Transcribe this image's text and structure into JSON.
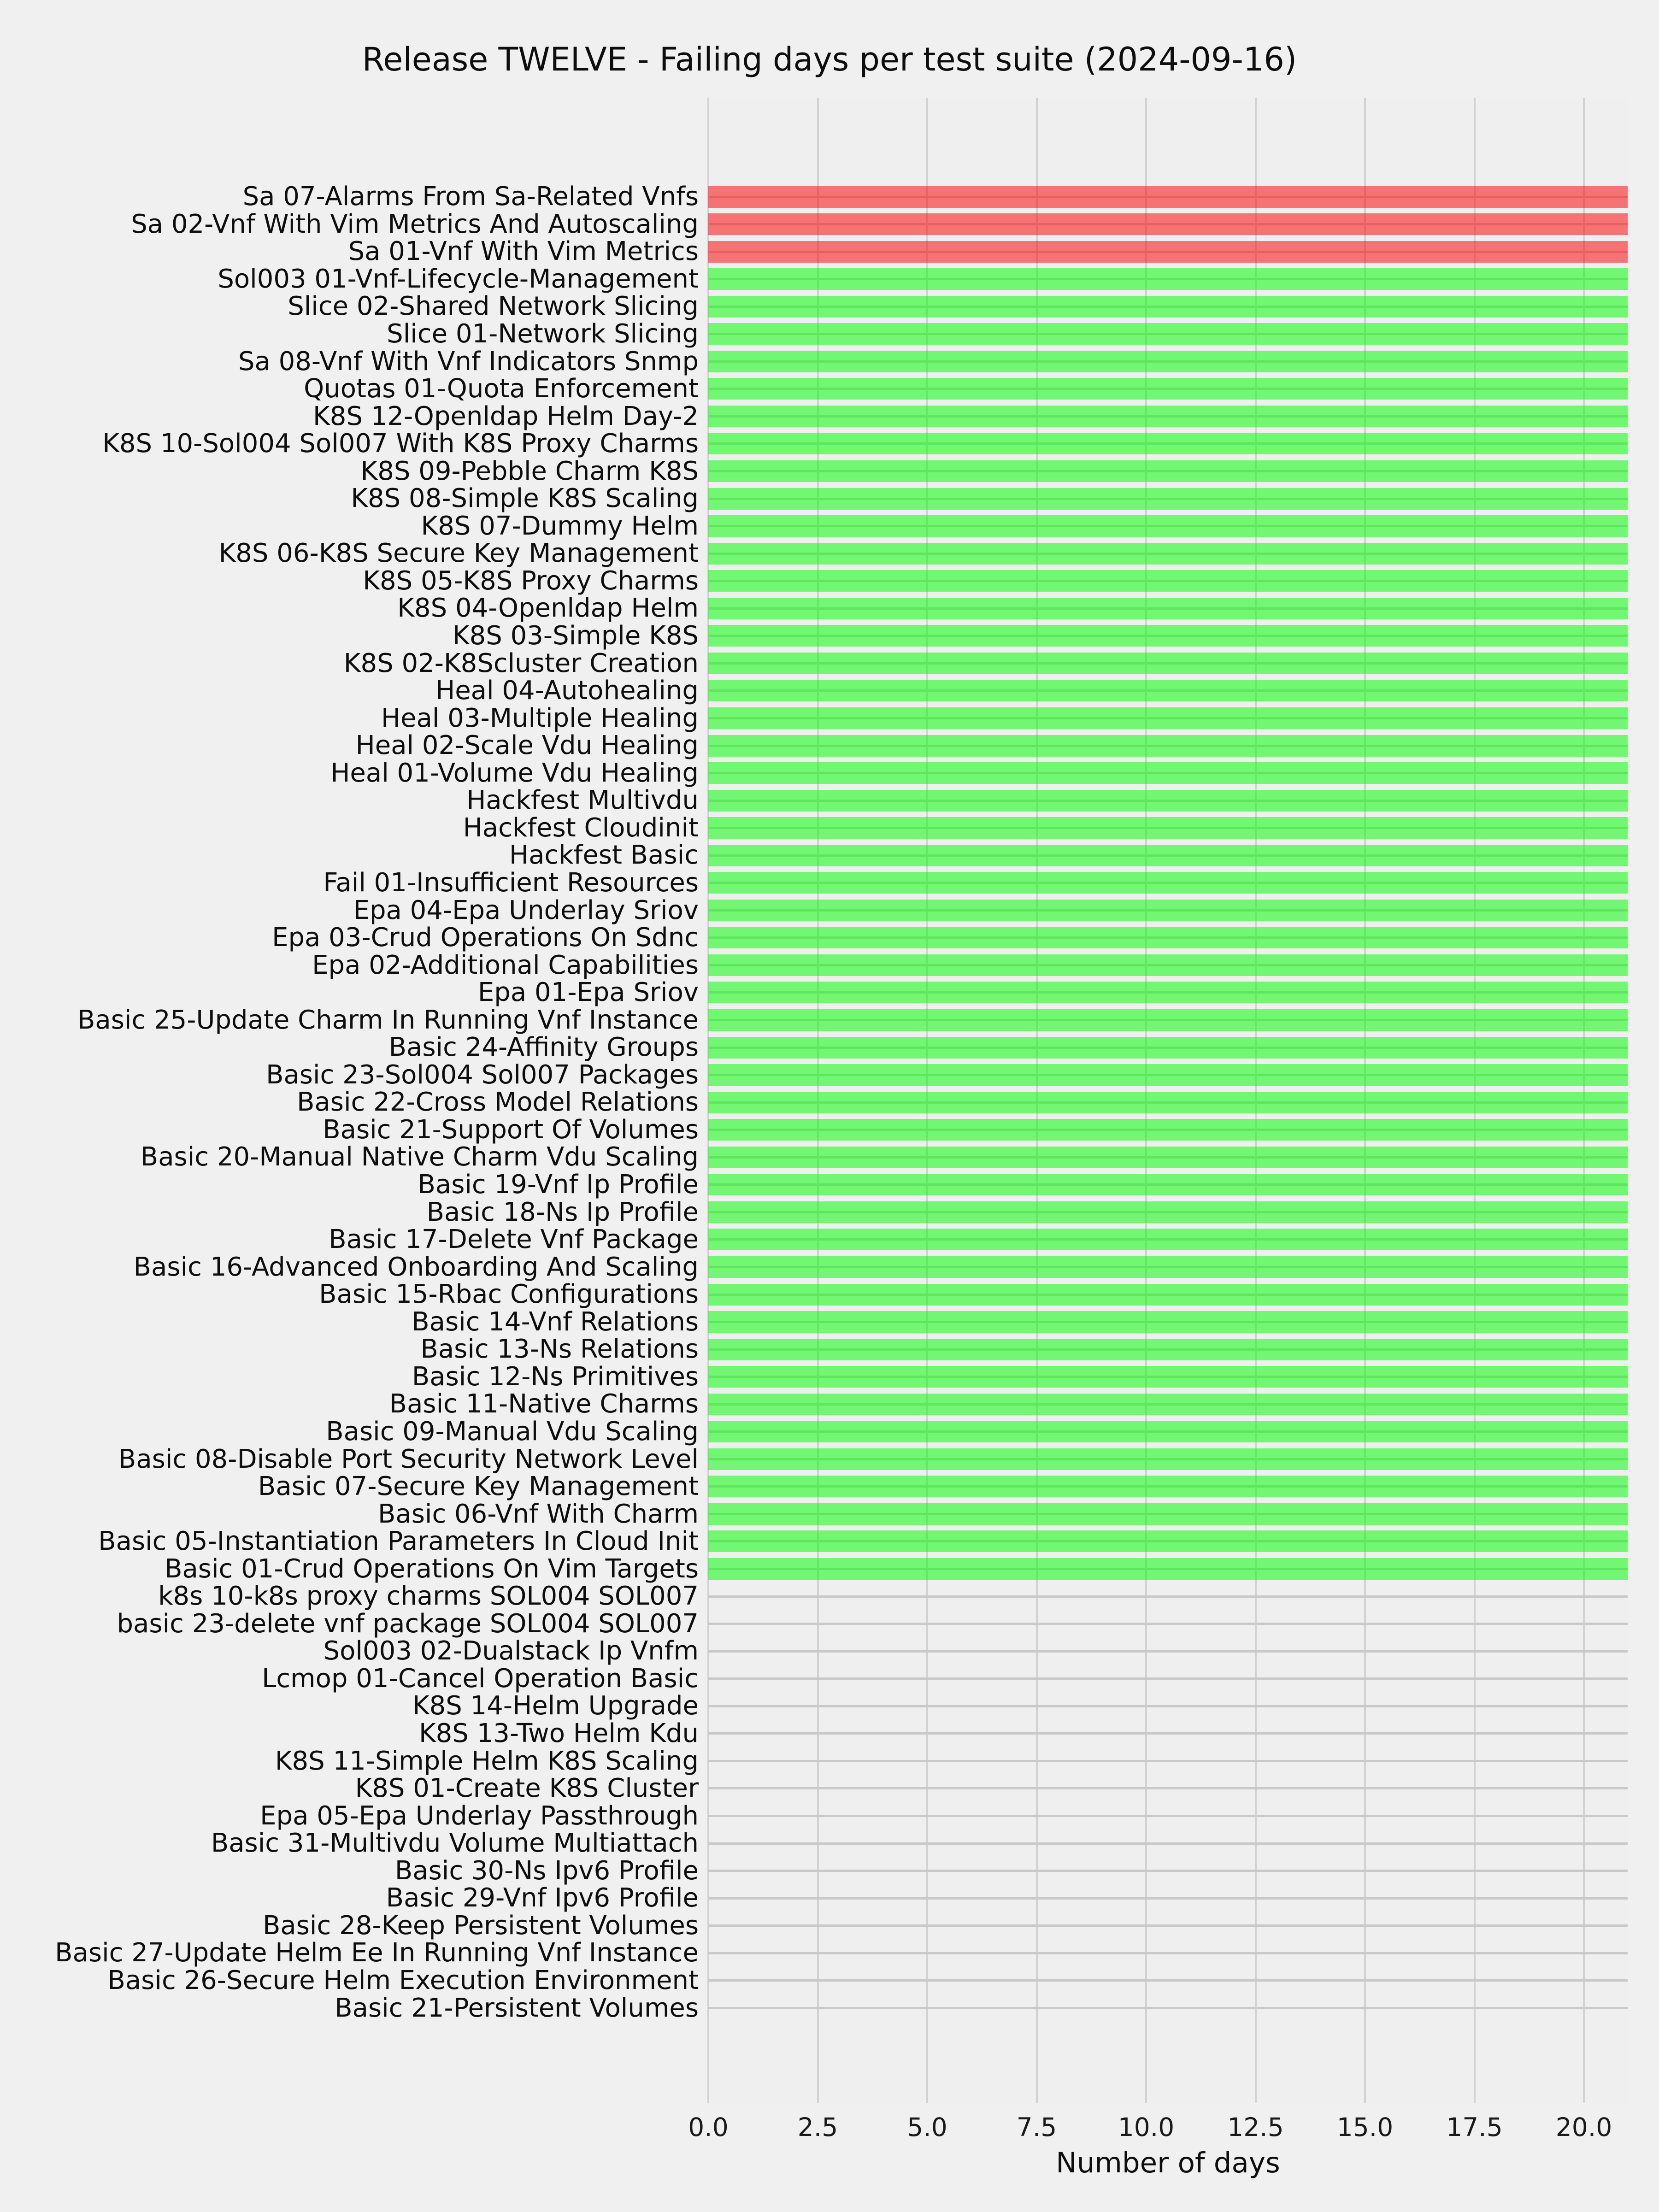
{
  "chart_data": {
    "type": "bar",
    "orientation": "horizontal",
    "title": "Release TWELVE - Failing days per test suite (2024-09-16)",
    "xlabel": "Number of days",
    "ylabel": "",
    "x_tick_labels": [
      "0.0",
      "2.5",
      "5.0",
      "7.5",
      "10.0",
      "12.5",
      "15.0",
      "17.5",
      "20.0"
    ],
    "xlim": [
      0,
      21
    ],
    "grid": true,
    "legend": false,
    "colors": {
      "red_bar": "rgba(255,0,0,0.52)",
      "green_bar": "rgba(0,255,0,0.52)",
      "red_bar_rendered": "#f57876",
      "green_bar_rendered": "#74f375",
      "background": "#f0f0f0",
      "gridline": "#cbcbcb"
    },
    "bars": [
      {
        "label": "Sa 07-Alarms From Sa-Related Vnfs",
        "value": 21,
        "color": "red"
      },
      {
        "label": "Sa 02-Vnf With Vim Metrics And Autoscaling",
        "value": 21,
        "color": "red"
      },
      {
        "label": "Sa 01-Vnf With Vim Metrics",
        "value": 21,
        "color": "red"
      },
      {
        "label": "Sol003 01-Vnf-Lifecycle-Management",
        "value": 21,
        "color": "green"
      },
      {
        "label": "Slice 02-Shared Network Slicing",
        "value": 21,
        "color": "green"
      },
      {
        "label": "Slice 01-Network Slicing",
        "value": 21,
        "color": "green"
      },
      {
        "label": "Sa 08-Vnf With Vnf Indicators Snmp",
        "value": 21,
        "color": "green"
      },
      {
        "label": "Quotas 01-Quota Enforcement",
        "value": 21,
        "color": "green"
      },
      {
        "label": "K8S 12-Openldap Helm Day-2",
        "value": 21,
        "color": "green"
      },
      {
        "label": "K8S 10-Sol004 Sol007 With K8S Proxy Charms",
        "value": 21,
        "color": "green"
      },
      {
        "label": "K8S 09-Pebble Charm K8S",
        "value": 21,
        "color": "green"
      },
      {
        "label": "K8S 08-Simple K8S Scaling",
        "value": 21,
        "color": "green"
      },
      {
        "label": "K8S 07-Dummy Helm",
        "value": 21,
        "color": "green"
      },
      {
        "label": "K8S 06-K8S Secure Key Management",
        "value": 21,
        "color": "green"
      },
      {
        "label": "K8S 05-K8S Proxy Charms",
        "value": 21,
        "color": "green"
      },
      {
        "label": "K8S 04-Openldap Helm",
        "value": 21,
        "color": "green"
      },
      {
        "label": "K8S 03-Simple K8S",
        "value": 21,
        "color": "green"
      },
      {
        "label": "K8S 02-K8Scluster Creation",
        "value": 21,
        "color": "green"
      },
      {
        "label": "Heal 04-Autohealing",
        "value": 21,
        "color": "green"
      },
      {
        "label": "Heal 03-Multiple Healing",
        "value": 21,
        "color": "green"
      },
      {
        "label": "Heal 02-Scale Vdu Healing",
        "value": 21,
        "color": "green"
      },
      {
        "label": "Heal 01-Volume Vdu Healing",
        "value": 21,
        "color": "green"
      },
      {
        "label": "Hackfest Multivdu",
        "value": 21,
        "color": "green"
      },
      {
        "label": "Hackfest Cloudinit",
        "value": 21,
        "color": "green"
      },
      {
        "label": "Hackfest Basic",
        "value": 21,
        "color": "green"
      },
      {
        "label": "Fail 01-Insufficient Resources",
        "value": 21,
        "color": "green"
      },
      {
        "label": "Epa 04-Epa Underlay Sriov",
        "value": 21,
        "color": "green"
      },
      {
        "label": "Epa 03-Crud Operations On Sdnc",
        "value": 21,
        "color": "green"
      },
      {
        "label": "Epa 02-Additional Capabilities",
        "value": 21,
        "color": "green"
      },
      {
        "label": "Epa 01-Epa Sriov",
        "value": 21,
        "color": "green"
      },
      {
        "label": "Basic 25-Update Charm In Running Vnf Instance",
        "value": 21,
        "color": "green"
      },
      {
        "label": "Basic 24-Affinity Groups",
        "value": 21,
        "color": "green"
      },
      {
        "label": "Basic 23-Sol004 Sol007 Packages",
        "value": 21,
        "color": "green"
      },
      {
        "label": "Basic 22-Cross Model Relations",
        "value": 21,
        "color": "green"
      },
      {
        "label": "Basic 21-Support Of Volumes",
        "value": 21,
        "color": "green"
      },
      {
        "label": "Basic 20-Manual Native Charm Vdu Scaling",
        "value": 21,
        "color": "green"
      },
      {
        "label": "Basic 19-Vnf Ip Profile",
        "value": 21,
        "color": "green"
      },
      {
        "label": "Basic 18-Ns Ip Profile",
        "value": 21,
        "color": "green"
      },
      {
        "label": "Basic 17-Delete Vnf Package",
        "value": 21,
        "color": "green"
      },
      {
        "label": "Basic 16-Advanced Onboarding And Scaling",
        "value": 21,
        "color": "green"
      },
      {
        "label": "Basic 15-Rbac Configurations",
        "value": 21,
        "color": "green"
      },
      {
        "label": "Basic 14-Vnf Relations",
        "value": 21,
        "color": "green"
      },
      {
        "label": "Basic 13-Ns Relations",
        "value": 21,
        "color": "green"
      },
      {
        "label": "Basic 12-Ns Primitives",
        "value": 21,
        "color": "green"
      },
      {
        "label": "Basic 11-Native Charms",
        "value": 21,
        "color": "green"
      },
      {
        "label": "Basic 09-Manual Vdu Scaling",
        "value": 21,
        "color": "green"
      },
      {
        "label": "Basic 08-Disable Port Security Network Level",
        "value": 21,
        "color": "green"
      },
      {
        "label": "Basic 07-Secure Key Management",
        "value": 21,
        "color": "green"
      },
      {
        "label": "Basic 06-Vnf With Charm",
        "value": 21,
        "color": "green"
      },
      {
        "label": "Basic 05-Instantiation Parameters In Cloud Init",
        "value": 21,
        "color": "green"
      },
      {
        "label": "Basic 01-Crud Operations On Vim Targets",
        "value": 21,
        "color": "green"
      },
      {
        "label": "k8s 10-k8s proxy charms SOL004 SOL007",
        "value": 0,
        "color": "none"
      },
      {
        "label": "basic 23-delete vnf package SOL004 SOL007",
        "value": 0,
        "color": "none"
      },
      {
        "label": "Sol003 02-Dualstack Ip Vnfm",
        "value": 0,
        "color": "none"
      },
      {
        "label": "Lcmop 01-Cancel Operation Basic",
        "value": 0,
        "color": "none"
      },
      {
        "label": "K8S 14-Helm Upgrade",
        "value": 0,
        "color": "none"
      },
      {
        "label": "K8S 13-Two Helm Kdu",
        "value": 0,
        "color": "none"
      },
      {
        "label": "K8S 11-Simple Helm K8S Scaling",
        "value": 0,
        "color": "none"
      },
      {
        "label": "K8S 01-Create K8S Cluster",
        "value": 0,
        "color": "none"
      },
      {
        "label": "Epa 05-Epa Underlay Passthrough",
        "value": 0,
        "color": "none"
      },
      {
        "label": "Basic 31-Multivdu Volume Multiattach",
        "value": 0,
        "color": "none"
      },
      {
        "label": "Basic 30-Ns Ipv6 Profile",
        "value": 0,
        "color": "none"
      },
      {
        "label": "Basic 29-Vnf Ipv6 Profile",
        "value": 0,
        "color": "none"
      },
      {
        "label": "Basic 28-Keep Persistent Volumes",
        "value": 0,
        "color": "none"
      },
      {
        "label": "Basic 27-Update Helm Ee In Running Vnf Instance",
        "value": 0,
        "color": "none"
      },
      {
        "label": "Basic 26-Secure Helm Execution Environment",
        "value": 0,
        "color": "none"
      },
      {
        "label": "Basic 21-Persistent Volumes",
        "value": 0,
        "color": "none"
      }
    ]
  }
}
